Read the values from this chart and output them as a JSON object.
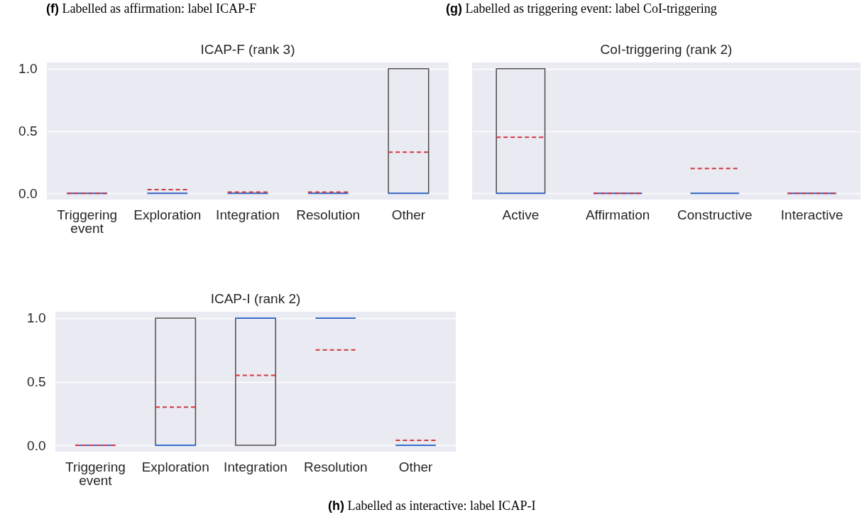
{
  "chart_data": [
    {
      "type": "box",
      "title": "ICAP-F (rank 3)",
      "annotations": [
        "(f) Labelled as affirmation: label ICAP-F"
      ],
      "categories": [
        "Triggering event",
        "Exploration",
        "Integration",
        "Resolution",
        "Other"
      ],
      "color": "#4d4d4d",
      "boxes": [
        {
          "low": 0,
          "q1": 0,
          "median": 0,
          "q3": 0,
          "high": 0,
          "mean": 0
        },
        {
          "low": 0,
          "q1": 0,
          "median": 0,
          "q3": 0,
          "high": 0,
          "mean": 0.03
        },
        {
          "low": 0,
          "q1": 0,
          "median": 0,
          "q3": 0,
          "high": 0,
          "mean": 0.01
        },
        {
          "low": 0,
          "q1": 0,
          "median": 0,
          "q3": 0,
          "high": 0,
          "mean": 0.01
        },
        {
          "low": 0,
          "q1": 0,
          "median": 0,
          "q3": 1,
          "high": 1,
          "mean": 0.33
        }
      ],
      "ylim": [
        -0.05,
        1.05
      ],
      "yticks": [
        {
          "value": 0,
          "label": "0.0"
        },
        {
          "value": 0.5,
          "label": "0.5"
        },
        {
          "value": 1,
          "label": "1.0"
        }
      ],
      "grid": "y"
    },
    {
      "type": "box",
      "title": "CoI-triggering (rank 2)",
      "annotations": [
        "(g) Labelled as triggering event: label CoI-triggering"
      ],
      "categories": [
        "Active",
        "Affirmation",
        "Constructive",
        "Interactive"
      ],
      "color": "#4d4d4d",
      "boxes": [
        {
          "low": 0,
          "q1": 0,
          "median": 0,
          "q3": 1,
          "high": 1,
          "mean": 0.45
        },
        {
          "low": 0,
          "q1": 0,
          "median": 0,
          "q3": 0,
          "high": 0,
          "mean": 0
        },
        {
          "low": 0,
          "q1": 0,
          "median": 0,
          "q3": 0,
          "high": 0,
          "mean": 0.2
        },
        {
          "low": 0,
          "q1": 0,
          "median": 0,
          "q3": 0,
          "high": 0,
          "mean": 0
        }
      ],
      "ylim": [
        -0.05,
        1.05
      ],
      "yticks": [
        0,
        0.5,
        1
      ],
      "grid": "y",
      "tick_labels": "x"
    },
    {
      "type": "box",
      "title": "ICAP-I (rank 2)",
      "annotations": [
        "(h) Labelled as interactive: label ICAP-I"
      ],
      "categories": [
        "Triggering event",
        "Exploration",
        "Integration",
        "Resolution",
        "Other"
      ],
      "color": "#4d4d4d",
      "boxes": [
        {
          "low": 0,
          "q1": 0,
          "median": 0,
          "q3": 0,
          "high": 0,
          "mean": 0
        },
        {
          "low": 0,
          "q1": 0,
          "median": 0,
          "q3": 1,
          "high": 1,
          "mean": 0.3
        },
        {
          "low": 0,
          "q1": 0,
          "median": 1,
          "q3": 1,
          "high": 1,
          "mean": 0.55
        },
        {
          "low": 1,
          "q1": 1,
          "median": 1,
          "q3": 1,
          "high": 1,
          "mean": 0.75
        },
        {
          "low": 0,
          "q1": 0,
          "median": 0,
          "q3": 0,
          "high": 0,
          "mean": 0.04
        }
      ],
      "ylim": [
        -0.05,
        1.05
      ],
      "yticks": [
        {
          "value": 0,
          "label": "0.0"
        },
        {
          "value": 0.5,
          "label": "0.5"
        },
        {
          "value": 1,
          "label": "1.0"
        }
      ],
      "grid": "y"
    }
  ]
}
